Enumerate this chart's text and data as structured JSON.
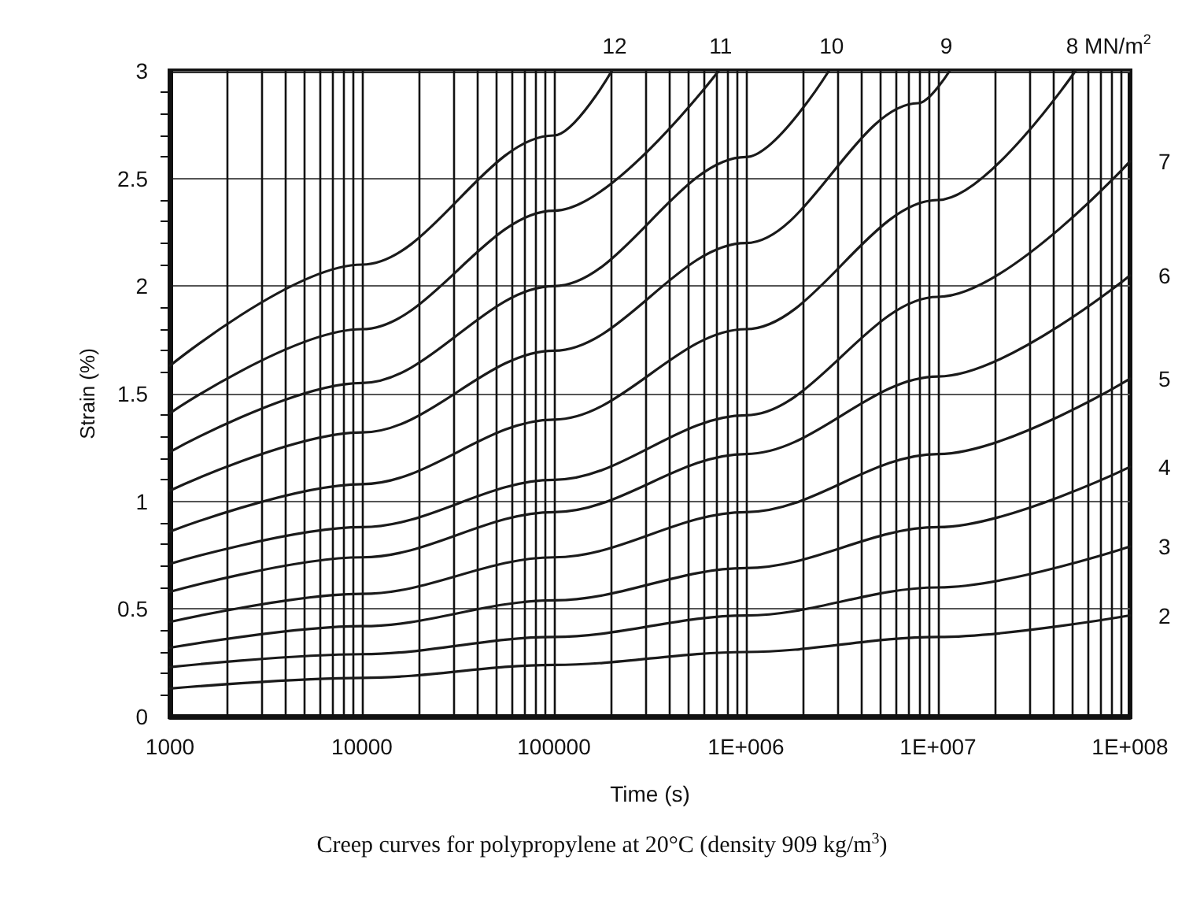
{
  "chart_data": {
    "type": "line",
    "xlabel": "Time (s)",
    "ylabel": "Strain (%)",
    "annotations": [
      "Creep curves for polypropylene at 20°C (density 909 kg/m$^{3}$)"
    ],
    "log": "x",
    "xlim": [
      1000,
      100000000
    ],
    "xticks": [
      {
        "value": 1000,
        "label": "1000"
      },
      {
        "value": 10000,
        "label": "10000"
      },
      {
        "value": 100000,
        "label": "100000"
      },
      {
        "value": 1000000,
        "label": "1E+006"
      },
      {
        "value": 10000000,
        "label": "1E+007"
      },
      {
        "value": 100000000,
        "label": "1E+008"
      }
    ],
    "ylim": [
      0,
      3
    ],
    "yticks": [
      0,
      0.5,
      1,
      1.5,
      2,
      2.5,
      3
    ],
    "grid": true,
    "legend": false,
    "marker": "none",
    "line_style": "solid",
    "series": [
      {
        "name": "2",
        "color": "#1a1a1a",
        "x": [
          1000,
          10000,
          100000,
          1000000,
          10000000,
          100000000
        ],
        "values": [
          0.13,
          0.18,
          0.24,
          0.3,
          0.37,
          0.47
        ]
      },
      {
        "name": "3",
        "color": "#1a1a1a",
        "x": [
          1000,
          10000,
          100000,
          1000000,
          10000000,
          100000000
        ],
        "values": [
          0.23,
          0.29,
          0.37,
          0.47,
          0.6,
          0.79
        ]
      },
      {
        "name": "4",
        "color": "#1a1a1a",
        "x": [
          1000,
          10000,
          100000,
          1000000,
          10000000,
          100000000
        ],
        "values": [
          0.32,
          0.42,
          0.54,
          0.69,
          0.88,
          1.16
        ]
      },
      {
        "name": "5",
        "color": "#1a1a1a",
        "x": [
          1000,
          10000,
          100000,
          1000000,
          10000000,
          100000000
        ],
        "values": [
          0.44,
          0.57,
          0.74,
          0.95,
          1.22,
          1.57
        ]
      },
      {
        "name": "6",
        "color": "#1a1a1a",
        "x": [
          1000,
          10000,
          100000,
          1000000,
          10000000,
          100000000
        ],
        "values": [
          0.58,
          0.74,
          0.95,
          1.22,
          1.58,
          2.05
        ]
      },
      {
        "name": "7",
        "color": "#1a1a1a",
        "x": [
          1000,
          10000,
          100000,
          1000000,
          10000000,
          100000000
        ],
        "values": [
          0.71,
          0.88,
          1.1,
          1.4,
          1.95,
          2.58
        ]
      },
      {
        "name": "8 MN/m$^{2}$",
        "color": "#1a1a1a",
        "x": [
          1000,
          10000,
          100000,
          1000000,
          10000000,
          52000000
        ],
        "values": [
          0.86,
          1.08,
          1.38,
          1.8,
          2.4,
          3
        ]
      },
      {
        "name": "9",
        "color": "#1a1a1a",
        "x": [
          1000,
          10000,
          100000,
          1000000,
          7900000,
          11500000
        ],
        "values": [
          1.05,
          1.32,
          1.7,
          2.2,
          2.85,
          3
        ]
      },
      {
        "name": "10",
        "color": "#1a1a1a",
        "x": [
          1000,
          10000,
          100000,
          1000000,
          2700000
        ],
        "values": [
          1.23,
          1.55,
          2,
          2.6,
          3
        ]
      },
      {
        "name": "11",
        "color": "#1a1a1a",
        "x": [
          1000,
          10000,
          100000,
          720000
        ],
        "values": [
          1.41,
          1.8,
          2.35,
          3
        ]
      },
      {
        "name": "12",
        "color": "#1a1a1a",
        "x": [
          1000,
          10000,
          100000,
          200000
        ],
        "values": [
          1.63,
          2.1,
          2.7,
          3
        ]
      }
    ]
  }
}
